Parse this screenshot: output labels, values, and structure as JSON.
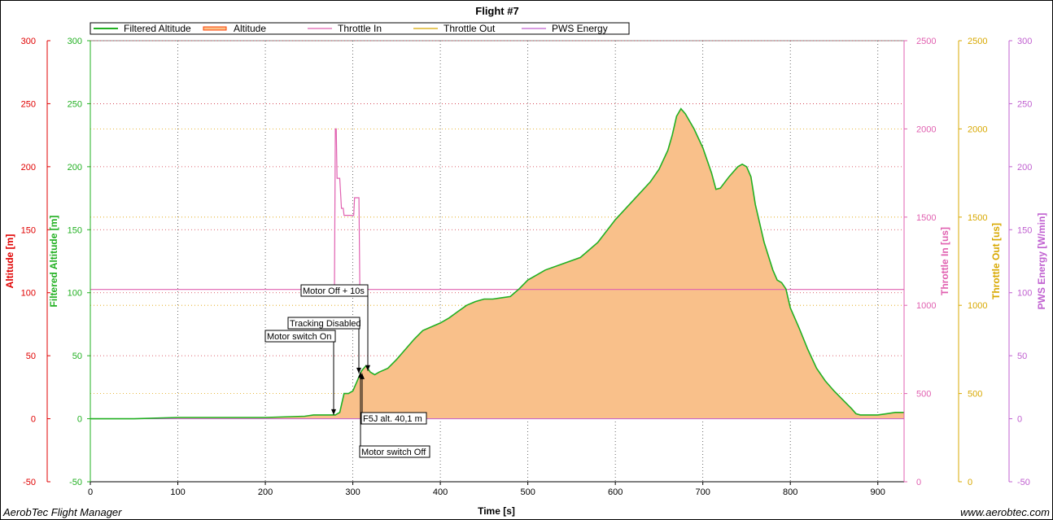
{
  "chart_data": {
    "type": "area",
    "title": "Flight #7",
    "xlabel": "Time [s]",
    "xlim": [
      0,
      930
    ],
    "xticks": [
      0,
      100,
      200,
      300,
      400,
      500,
      600,
      700,
      800,
      900
    ],
    "grid": true,
    "legend_position": "top-left",
    "legend": [
      "Filtered Altitude",
      "Altitude",
      "Throttle In",
      "Throttle Out",
      "PWS Energy"
    ],
    "axes": {
      "altitude": {
        "label": "Altitude [m]",
        "ylim": [
          -50,
          300
        ],
        "ticks": [
          -50,
          0,
          50,
          100,
          150,
          200,
          250,
          300
        ],
        "color": "#e00000",
        "side": "left"
      },
      "filtered_altitude": {
        "label": "Filtered Altitude [m]",
        "ylim": [
          -50,
          300
        ],
        "ticks": [
          -50,
          0,
          50,
          100,
          150,
          200,
          250,
          300
        ],
        "color": "#22b022",
        "side": "left"
      },
      "throttle_in": {
        "label": "Throttle In [us]",
        "ylim": [
          0,
          2500
        ],
        "ticks": [
          0,
          500,
          1000,
          1500,
          2000,
          2500
        ],
        "color": "#e060b0",
        "side": "right"
      },
      "throttle_out": {
        "label": "Throttle Out [us]",
        "ylim": [
          0,
          2500
        ],
        "ticks": [
          0,
          500,
          1000,
          1500,
          2000,
          2500
        ],
        "color": "#d8a800",
        "side": "right"
      },
      "pws_energy": {
        "label": "PWS Energy [W/min]",
        "ylim": [
          -50,
          300
        ],
        "ticks": [
          -50,
          0,
          50,
          100,
          150,
          200,
          250,
          300
        ],
        "color": "#c060d0",
        "side": "right"
      }
    },
    "series": [
      {
        "name": "Filtered Altitude",
        "axis": "filtered_altitude",
        "color": "#22b022",
        "x": [
          0,
          50,
          100,
          150,
          200,
          245,
          255,
          280,
          285,
          290,
          295,
          300,
          305,
          310,
          315,
          320,
          325,
          330,
          340,
          350,
          360,
          370,
          380,
          390,
          400,
          410,
          420,
          430,
          440,
          450,
          460,
          470,
          480,
          490,
          500,
          520,
          540,
          560,
          580,
          600,
          620,
          640,
          650,
          660,
          665,
          670,
          675,
          680,
          690,
          700,
          710,
          715,
          720,
          730,
          740,
          745,
          750,
          755,
          760,
          770,
          780,
          785,
          790,
          795,
          800,
          810,
          820,
          830,
          840,
          850,
          860,
          870,
          875,
          880,
          890,
          900,
          910,
          920,
          930
        ],
        "y": [
          0,
          0,
          1,
          1,
          1,
          2,
          3,
          3,
          5,
          20,
          20,
          22,
          30,
          38,
          42,
          37,
          35,
          37,
          40,
          47,
          55,
          63,
          70,
          73,
          76,
          80,
          85,
          90,
          93,
          95,
          95,
          96,
          97,
          103,
          110,
          118,
          123,
          128,
          140,
          158,
          173,
          188,
          198,
          213,
          225,
          240,
          246,
          242,
          230,
          215,
          195,
          182,
          183,
          192,
          200,
          202,
          200,
          192,
          170,
          140,
          118,
          110,
          108,
          103,
          88,
          72,
          55,
          40,
          30,
          22,
          15,
          8,
          4,
          3,
          3,
          3,
          4,
          5,
          5
        ]
      },
      {
        "name": "Altitude",
        "axis": "altitude",
        "color": "#ff7f00",
        "x": [
          0,
          50,
          100,
          150,
          200,
          245,
          255,
          280,
          285,
          290,
          295,
          300,
          305,
          310,
          315,
          320,
          325,
          330,
          340,
          350,
          360,
          370,
          380,
          390,
          400,
          410,
          420,
          430,
          440,
          450,
          460,
          470,
          480,
          490,
          500,
          520,
          540,
          560,
          580,
          600,
          620,
          640,
          650,
          660,
          665,
          670,
          675,
          680,
          690,
          700,
          710,
          715,
          720,
          730,
          740,
          745,
          750,
          755,
          760,
          770,
          780,
          785,
          790,
          795,
          800,
          810,
          820,
          830,
          840,
          850,
          860,
          870,
          875,
          880,
          890,
          900,
          910,
          920,
          930
        ],
        "y": [
          0,
          0,
          1,
          1,
          1,
          2,
          3,
          3,
          5,
          20,
          20,
          22,
          30,
          38,
          42,
          37,
          35,
          37,
          40,
          47,
          55,
          63,
          70,
          73,
          76,
          80,
          85,
          90,
          93,
          95,
          95,
          96,
          97,
          103,
          110,
          118,
          123,
          128,
          140,
          158,
          173,
          188,
          198,
          213,
          225,
          240,
          246,
          242,
          230,
          215,
          195,
          182,
          183,
          192,
          200,
          202,
          200,
          192,
          170,
          140,
          118,
          110,
          108,
          103,
          88,
          72,
          55,
          40,
          30,
          22,
          15,
          8,
          4,
          3,
          3,
          3,
          4,
          5,
          5
        ]
      },
      {
        "name": "Throttle In",
        "axis": "throttle_in",
        "color": "#e060b0",
        "x": [
          0,
          278,
          279,
          280,
          281,
          282,
          283,
          285,
          287,
          288,
          289,
          290,
          300,
          301,
          302,
          303,
          304,
          305,
          306,
          307,
          308,
          309,
          310,
          311,
          930
        ],
        "y": [
          1090,
          1090,
          1090,
          2000,
          2000,
          1720,
          1720,
          1720,
          1550,
          1550,
          1550,
          1510,
          1510,
          1510,
          1610,
          1610,
          1610,
          1610,
          1610,
          1610,
          1090,
          1090,
          1090,
          1090,
          1090
        ]
      },
      {
        "name": "Throttle Out",
        "axis": "throttle_out",
        "color": "#d8a800",
        "x": [],
        "y": []
      },
      {
        "name": "PWS Energy",
        "axis": "pws_energy",
        "color": "#c060d0",
        "x": [
          0,
          930
        ],
        "y": [
          0,
          0
        ]
      }
    ],
    "annotations": [
      {
        "text": "Motor switch On",
        "x": 280,
        "y": 3
      },
      {
        "text": "Tracking Disabled",
        "x": 308,
        "y": 36
      },
      {
        "text": "Motor Off + 10s",
        "x": 318,
        "y": 38
      },
      {
        "text": "F5J alt. 40,1 m",
        "x": 307,
        "y": 36
      },
      {
        "text": "Motor switch Off",
        "x": 309,
        "y": 37
      }
    ]
  },
  "footer": {
    "left": "AerobTec Flight Manager",
    "right": "www.aerobtec.com"
  }
}
